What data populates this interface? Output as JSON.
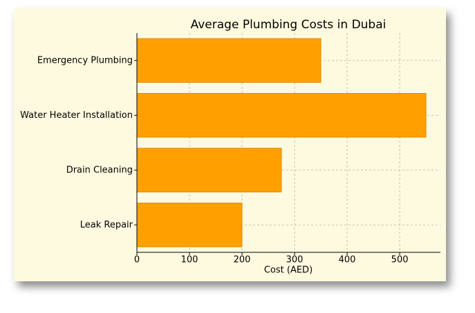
{
  "chart_data": {
    "type": "barh",
    "title": "Average Plumbing Costs in Dubai",
    "xlabel": "Cost (AED)",
    "categories": [
      "Emergency Plumbing",
      "Water Heater Installation",
      "Drain Cleaning",
      "Leak Repair"
    ],
    "values": [
      350,
      550,
      275,
      200
    ],
    "color": "#ffa000",
    "xlim": [
      0,
      577.5
    ],
    "xticks": [
      0,
      100,
      200,
      300,
      400,
      500
    ],
    "grid": true
  }
}
